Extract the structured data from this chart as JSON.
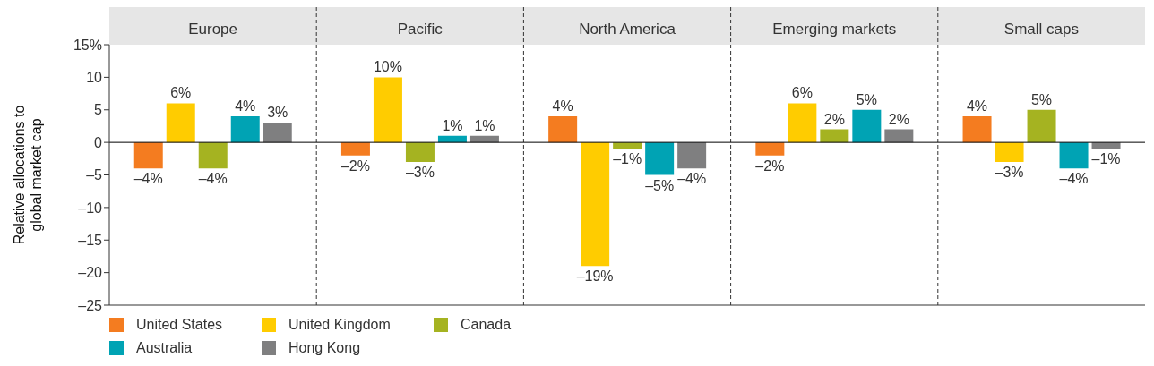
{
  "chart_data": {
    "type": "bar",
    "ylabel": "Relative allocations to\nglobal market cap",
    "categories": [
      "Europe",
      "Pacific",
      "North America",
      "Emerging markets",
      "Small caps"
    ],
    "series": [
      {
        "name": "United States",
        "color": "#f47c20",
        "values": [
          -4,
          -2,
          4,
          -2,
          4
        ],
        "value_labels": [
          "–4%",
          "–2%",
          "4%",
          "–2%",
          "4%"
        ]
      },
      {
        "name": "United Kingdom",
        "color": "#ffcc00",
        "values": [
          6,
          10,
          -19,
          6,
          -3
        ],
        "value_labels": [
          "6%",
          "10%",
          "–19%",
          "6%",
          "–3%"
        ]
      },
      {
        "name": "Canada",
        "color": "#a5b321",
        "values": [
          -4,
          -3,
          -1,
          2,
          5
        ],
        "value_labels": [
          "–4%",
          "–3%",
          "–1%",
          "2%",
          "5%"
        ]
      },
      {
        "name": "Australia",
        "color": "#00a3b4",
        "values": [
          4,
          1,
          -5,
          5,
          -4
        ],
        "value_labels": [
          "4%",
          "1%",
          "–5%",
          "5%",
          "–4%"
        ]
      },
      {
        "name": "Hong Kong",
        "color": "#7f7f80",
        "values": [
          3,
          1,
          -4,
          2,
          -1
        ],
        "value_labels": [
          "3%",
          "1%",
          "–4%",
          "2%",
          "–1%"
        ]
      }
    ],
    "ylim": [
      -25,
      15
    ],
    "yticks": [
      {
        "value": 15,
        "label": "15%"
      },
      10,
      5,
      0,
      {
        "value": -5,
        "label": "–5"
      },
      {
        "value": -10,
        "label": "–10"
      },
      {
        "value": -15,
        "label": "–15"
      },
      {
        "value": -20,
        "label": "–20"
      },
      {
        "value": -25,
        "label": "–25"
      }
    ],
    "ref_lines": [
      {
        "axis": "y",
        "value": 0,
        "color": "#000000"
      }
    ],
    "legend": "bottom left"
  }
}
